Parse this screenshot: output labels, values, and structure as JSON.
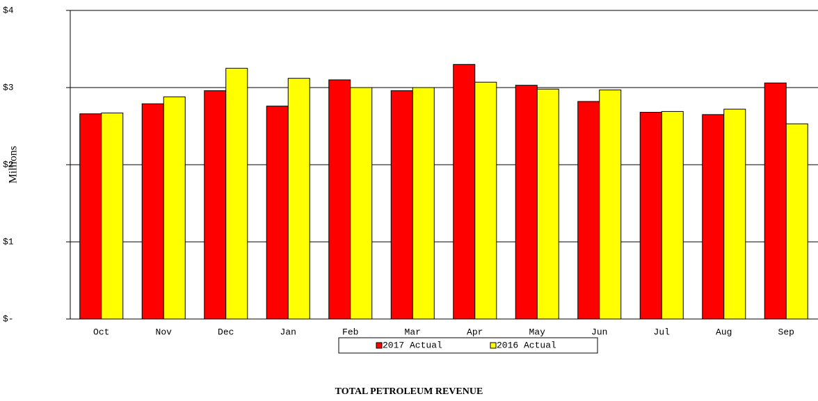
{
  "chart_data": {
    "type": "bar",
    "title": "TOTAL PETROLEUM REVENUE",
    "y_label": "Millions",
    "categories": [
      "Oct",
      "Nov",
      "Dec",
      "Jan",
      "Feb",
      "Mar",
      "Apr",
      "May",
      "Jun",
      "Jul",
      "Aug",
      "Sep"
    ],
    "series": [
      {
        "name": "2017 Actual",
        "color": "#ff0000",
        "values": [
          2.66,
          2.79,
          2.96,
          2.76,
          3.1,
          2.96,
          3.3,
          3.03,
          2.82,
          2.68,
          2.65,
          3.06
        ]
      },
      {
        "name": "2016 Actual",
        "color": "#ffff00",
        "values": [
          2.67,
          2.88,
          3.25,
          3.12,
          3.0,
          3.0,
          3.07,
          2.98,
          2.97,
          2.69,
          2.72,
          2.53
        ]
      }
    ],
    "ylim": [
      0,
      4
    ],
    "yticks": [
      {
        "value": 0,
        "label": "$-"
      },
      {
        "value": 1,
        "label": "$1"
      },
      {
        "value": 2,
        "label": "$2"
      },
      {
        "value": 3,
        "label": "$3"
      },
      {
        "value": 4,
        "label": "$4"
      }
    ],
    "grid": true
  }
}
